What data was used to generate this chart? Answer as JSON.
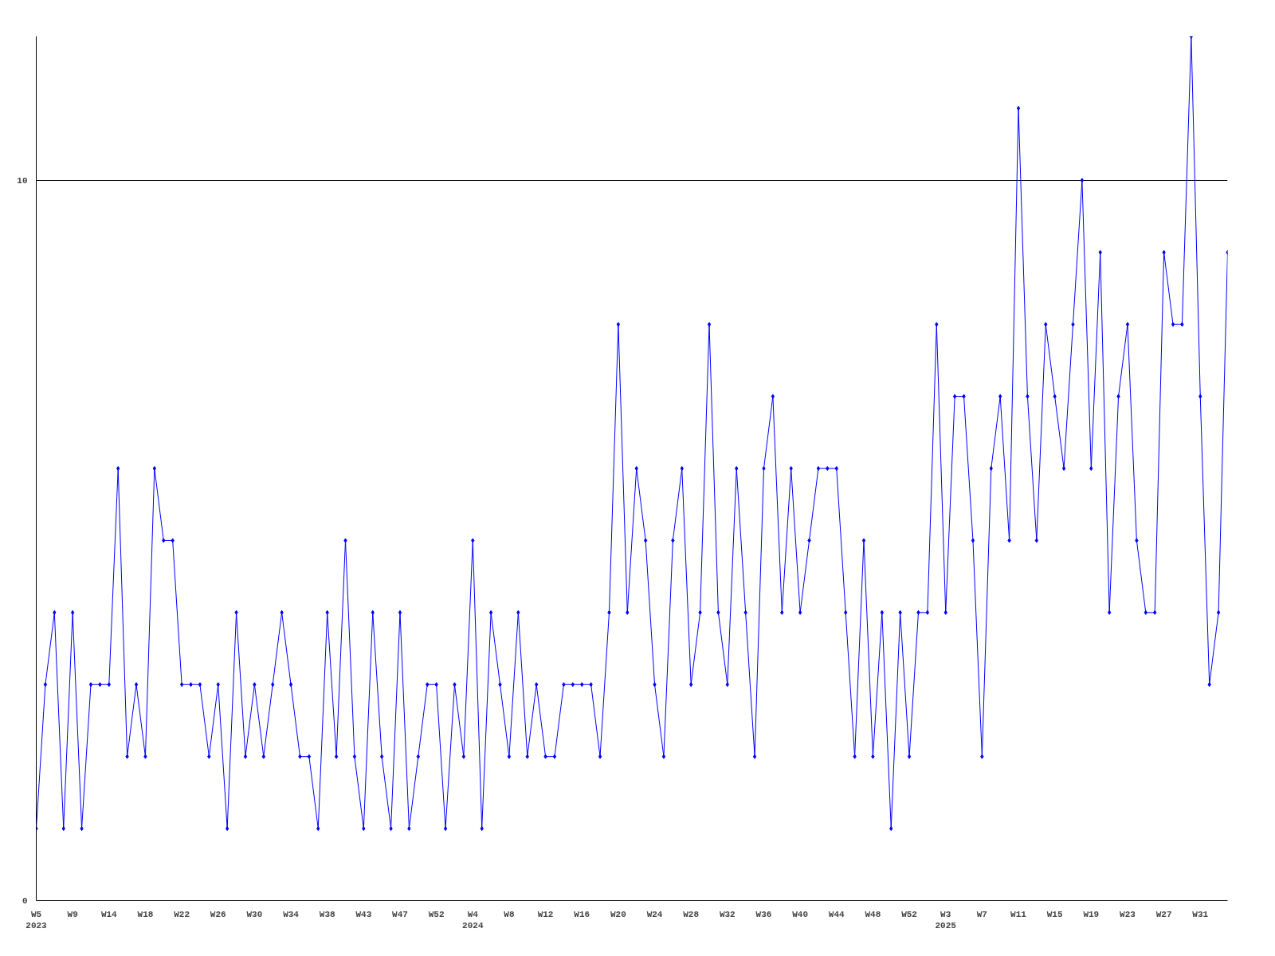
{
  "chart_data": {
    "type": "line",
    "categories": [
      "W5\n2023",
      null,
      null,
      null,
      "W9",
      null,
      null,
      null,
      "W14",
      null,
      null,
      null,
      "W18",
      null,
      null,
      null,
      "W22",
      null,
      null,
      null,
      "W26",
      null,
      null,
      null,
      "W30",
      null,
      null,
      null,
      "W34",
      null,
      null,
      null,
      "W38",
      null,
      null,
      null,
      "W43",
      null,
      null,
      null,
      "W47",
      null,
      null,
      null,
      "W52",
      null,
      null,
      null,
      "W4\n2024",
      null,
      null,
      null,
      "W8",
      null,
      null,
      null,
      "W12",
      null,
      null,
      null,
      "W16",
      null,
      null,
      null,
      "W20",
      null,
      null,
      null,
      "W24",
      null,
      null,
      null,
      "W28",
      null,
      null,
      null,
      "W32",
      null,
      null,
      null,
      "W36",
      null,
      null,
      null,
      "W40",
      null,
      null,
      null,
      "W44",
      null,
      null,
      null,
      "W48",
      null,
      null,
      null,
      "W52",
      null,
      null,
      null,
      "W3\n2025",
      null,
      null,
      null,
      "W7",
      null,
      null,
      null,
      "W11",
      null,
      null,
      null,
      "W15",
      null,
      null,
      null,
      "W19",
      null,
      null,
      null,
      "W23",
      null,
      null,
      null,
      "W27",
      null,
      null,
      null,
      "W31",
      null,
      null,
      null
    ],
    "series": [
      {
        "color": "#0000ff",
        "values": [
          1,
          3,
          4,
          1,
          4,
          1,
          3,
          3,
          3,
          6,
          2,
          3,
          2,
          6,
          5,
          5,
          3,
          3,
          3,
          2,
          3,
          1,
          4,
          2,
          3,
          2,
          3,
          4,
          3,
          2,
          2,
          1,
          4,
          2,
          5,
          2,
          1,
          4,
          2,
          1,
          4,
          1,
          2,
          3,
          3,
          1,
          3,
          2,
          5,
          1,
          4,
          3,
          2,
          4,
          2,
          3,
          2,
          2,
          3,
          3,
          3,
          3,
          2,
          4,
          8,
          4,
          6,
          5,
          3,
          2,
          5,
          6,
          3,
          4,
          8,
          4,
          3,
          6,
          4,
          2,
          6,
          7,
          4,
          6,
          4,
          5,
          6,
          6,
          6,
          4,
          2,
          5,
          2,
          4,
          1,
          4,
          2,
          4,
          4,
          8,
          4,
          7,
          7,
          5,
          2,
          6,
          7,
          5,
          11,
          7,
          5,
          8,
          7,
          6,
          8,
          10,
          6,
          9,
          4,
          7,
          8,
          5,
          4,
          4,
          9,
          8,
          8,
          12,
          7,
          3,
          4,
          9
        ]
      }
    ],
    "ylim": [
      0,
      12
    ],
    "yticks": [
      0,
      10
    ],
    "grid": "y",
    "marker": "diamond",
    "line_style": "solid"
  }
}
